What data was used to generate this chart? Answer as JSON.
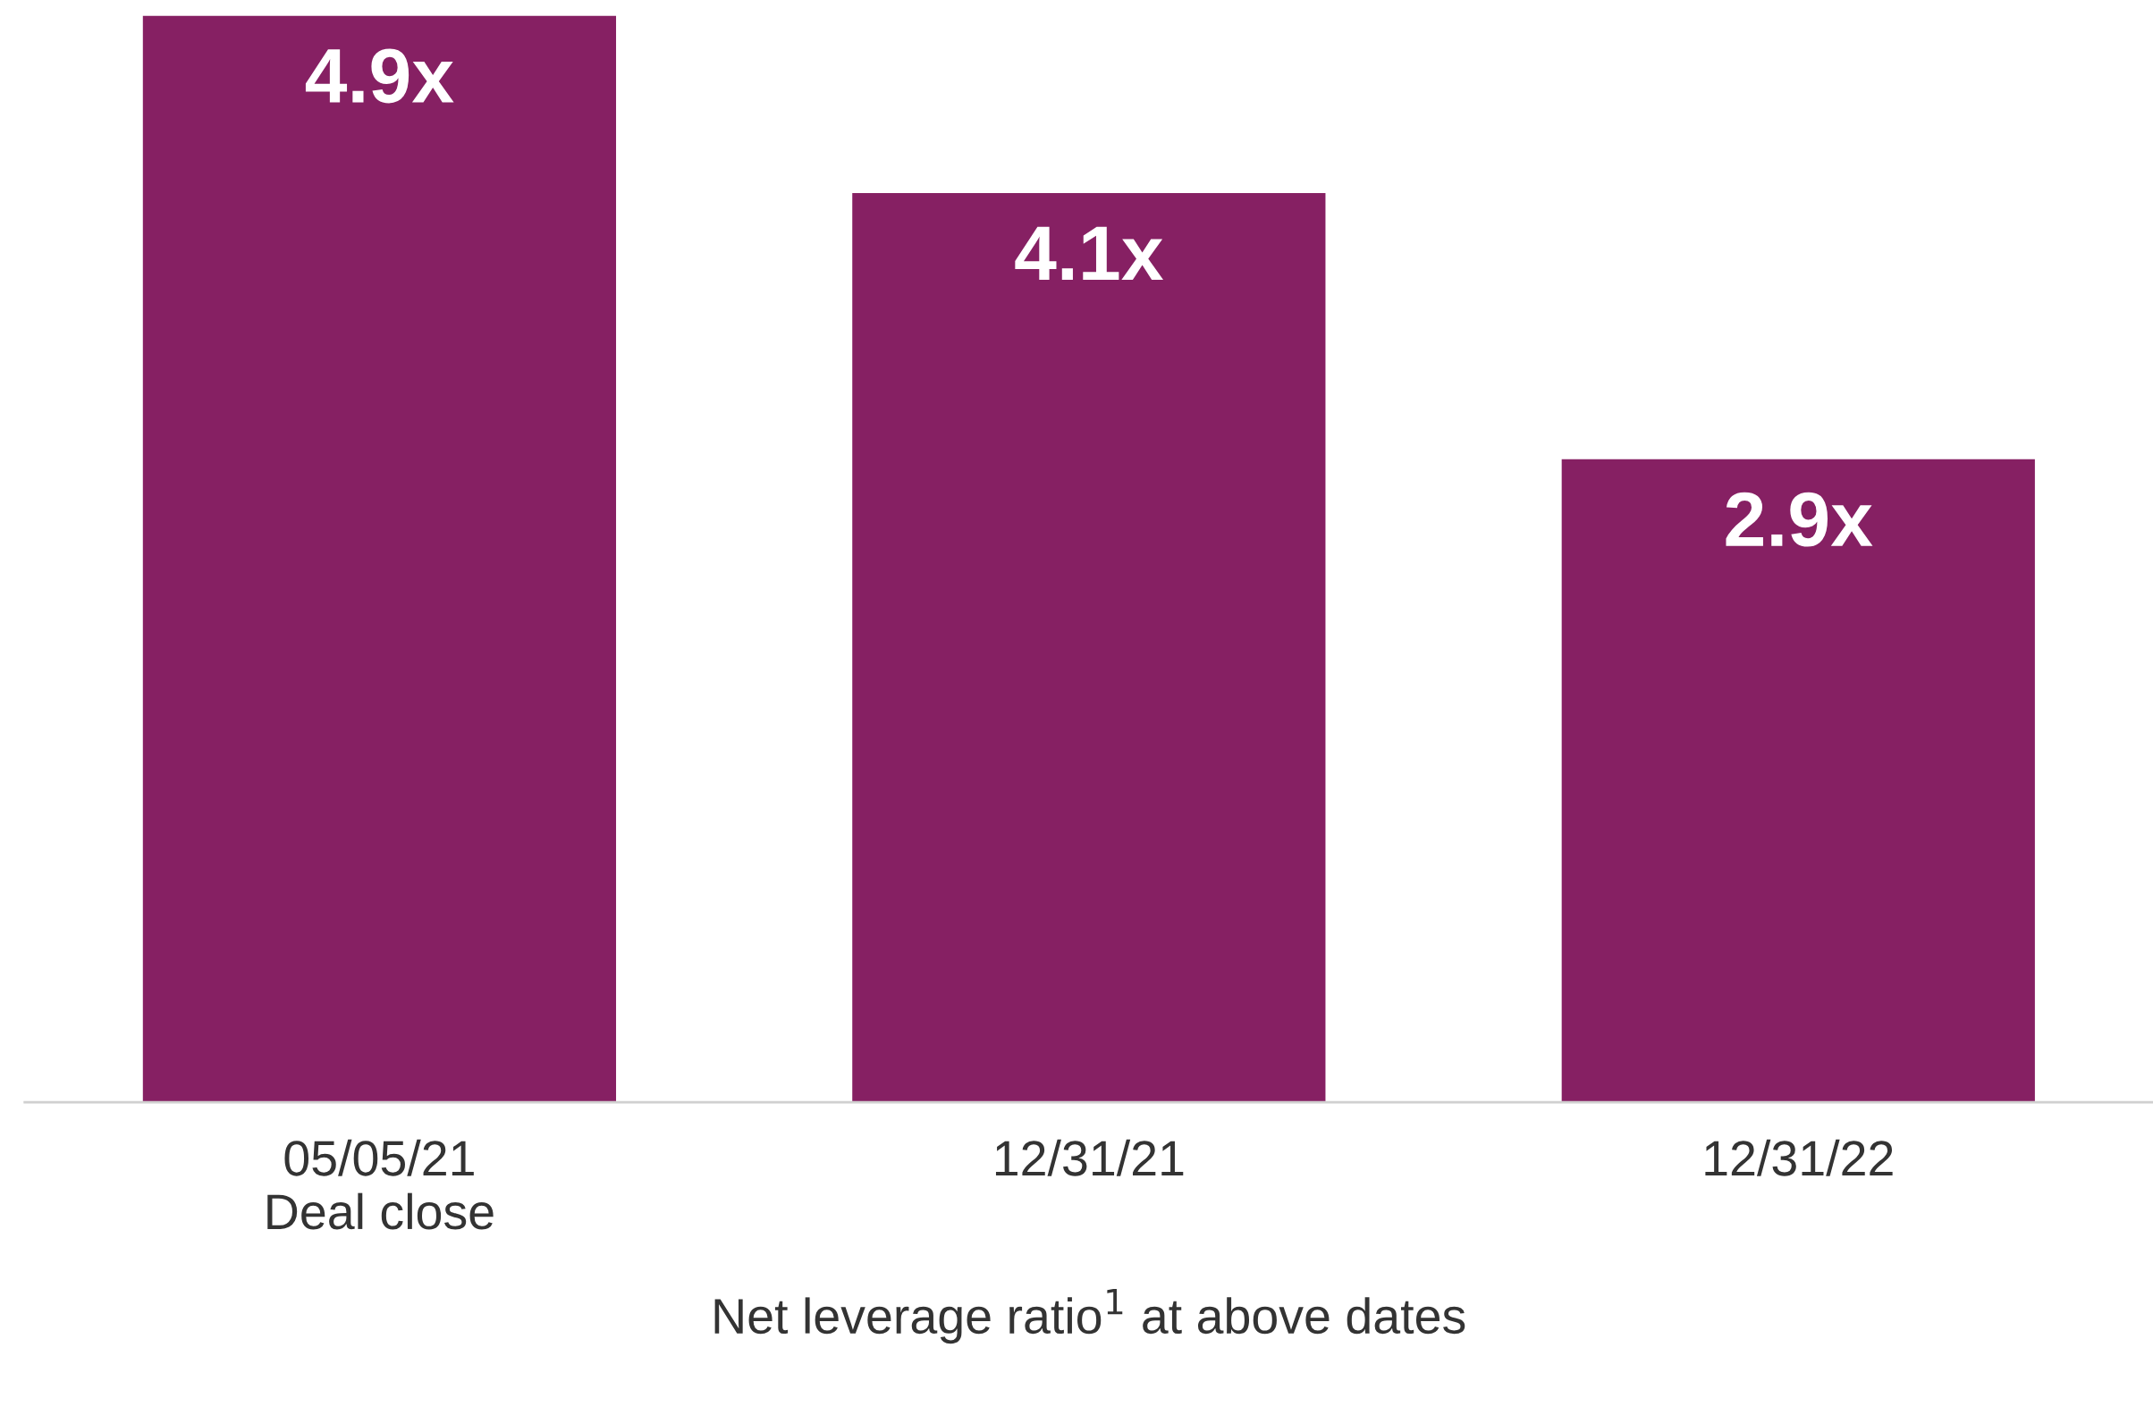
{
  "chart_data": {
    "type": "bar",
    "categories": [
      "05/05/21\nDeal close",
      "12/31/21",
      "12/31/22"
    ],
    "values": [
      4.9,
      4.1,
      2.9
    ],
    "color": "#862063",
    "value_labels": [
      "4.9x",
      "4.1x",
      "2.9x"
    ],
    "xlabel": "Net leverage ratio$^{1}$ at above dates",
    "grid": false,
    "legend": false
  }
}
